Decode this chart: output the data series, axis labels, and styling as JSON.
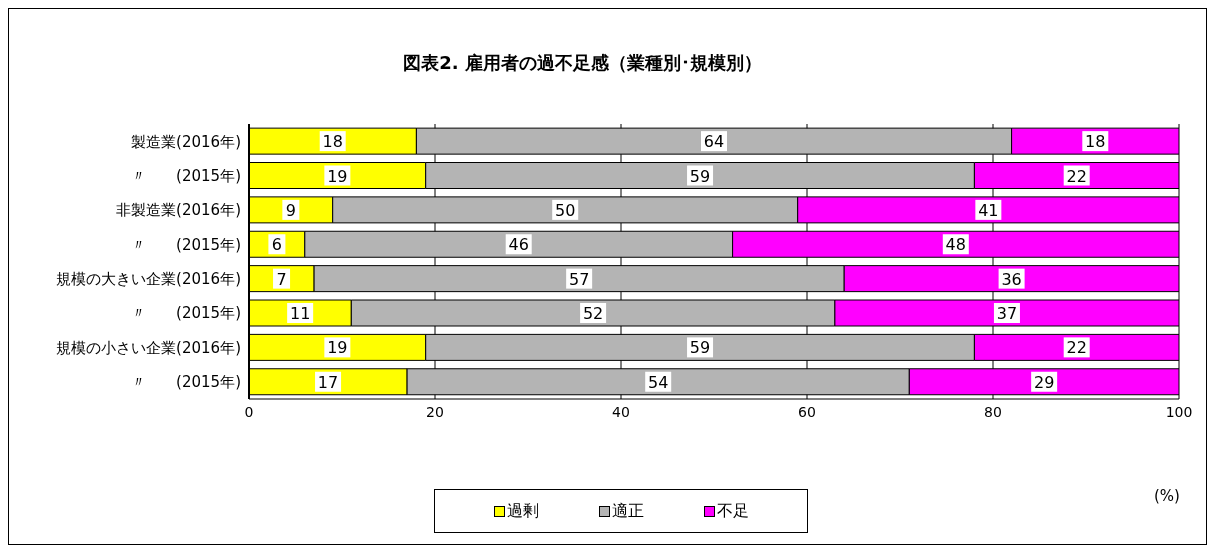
{
  "chart_data": {
    "type": "bar",
    "orientation": "horizontal",
    "stacked": true,
    "title": "図表2. 雇用者の過不足感（業種別･規模別）",
    "xlabel": "(%)",
    "categories": [
      "製造業(2016年)",
      "〃　　(2015年)",
      "非製造業(2016年)",
      "〃　　(2015年)",
      "規模の大きい企業(2016年)",
      "〃　　(2015年)",
      "規模の小さい企業(2016年)",
      "〃　　(2015年)"
    ],
    "series": [
      {
        "name": "過剰",
        "color": "#ffff00",
        "values": [
          18,
          19,
          9,
          6,
          7,
          11,
          19,
          17
        ]
      },
      {
        "name": "適正",
        "color": "#b4b4b4",
        "values": [
          64,
          59,
          50,
          46,
          57,
          52,
          59,
          54
        ]
      },
      {
        "name": "不足",
        "color": "#ff00ff",
        "values": [
          18,
          22,
          41,
          48,
          36,
          37,
          22,
          29
        ]
      }
    ],
    "xlim": [
      0,
      100
    ],
    "xticks": [
      0,
      20,
      40,
      60,
      80,
      100
    ],
    "grid": "x",
    "legend": "bottom",
    "data_labels": true
  }
}
